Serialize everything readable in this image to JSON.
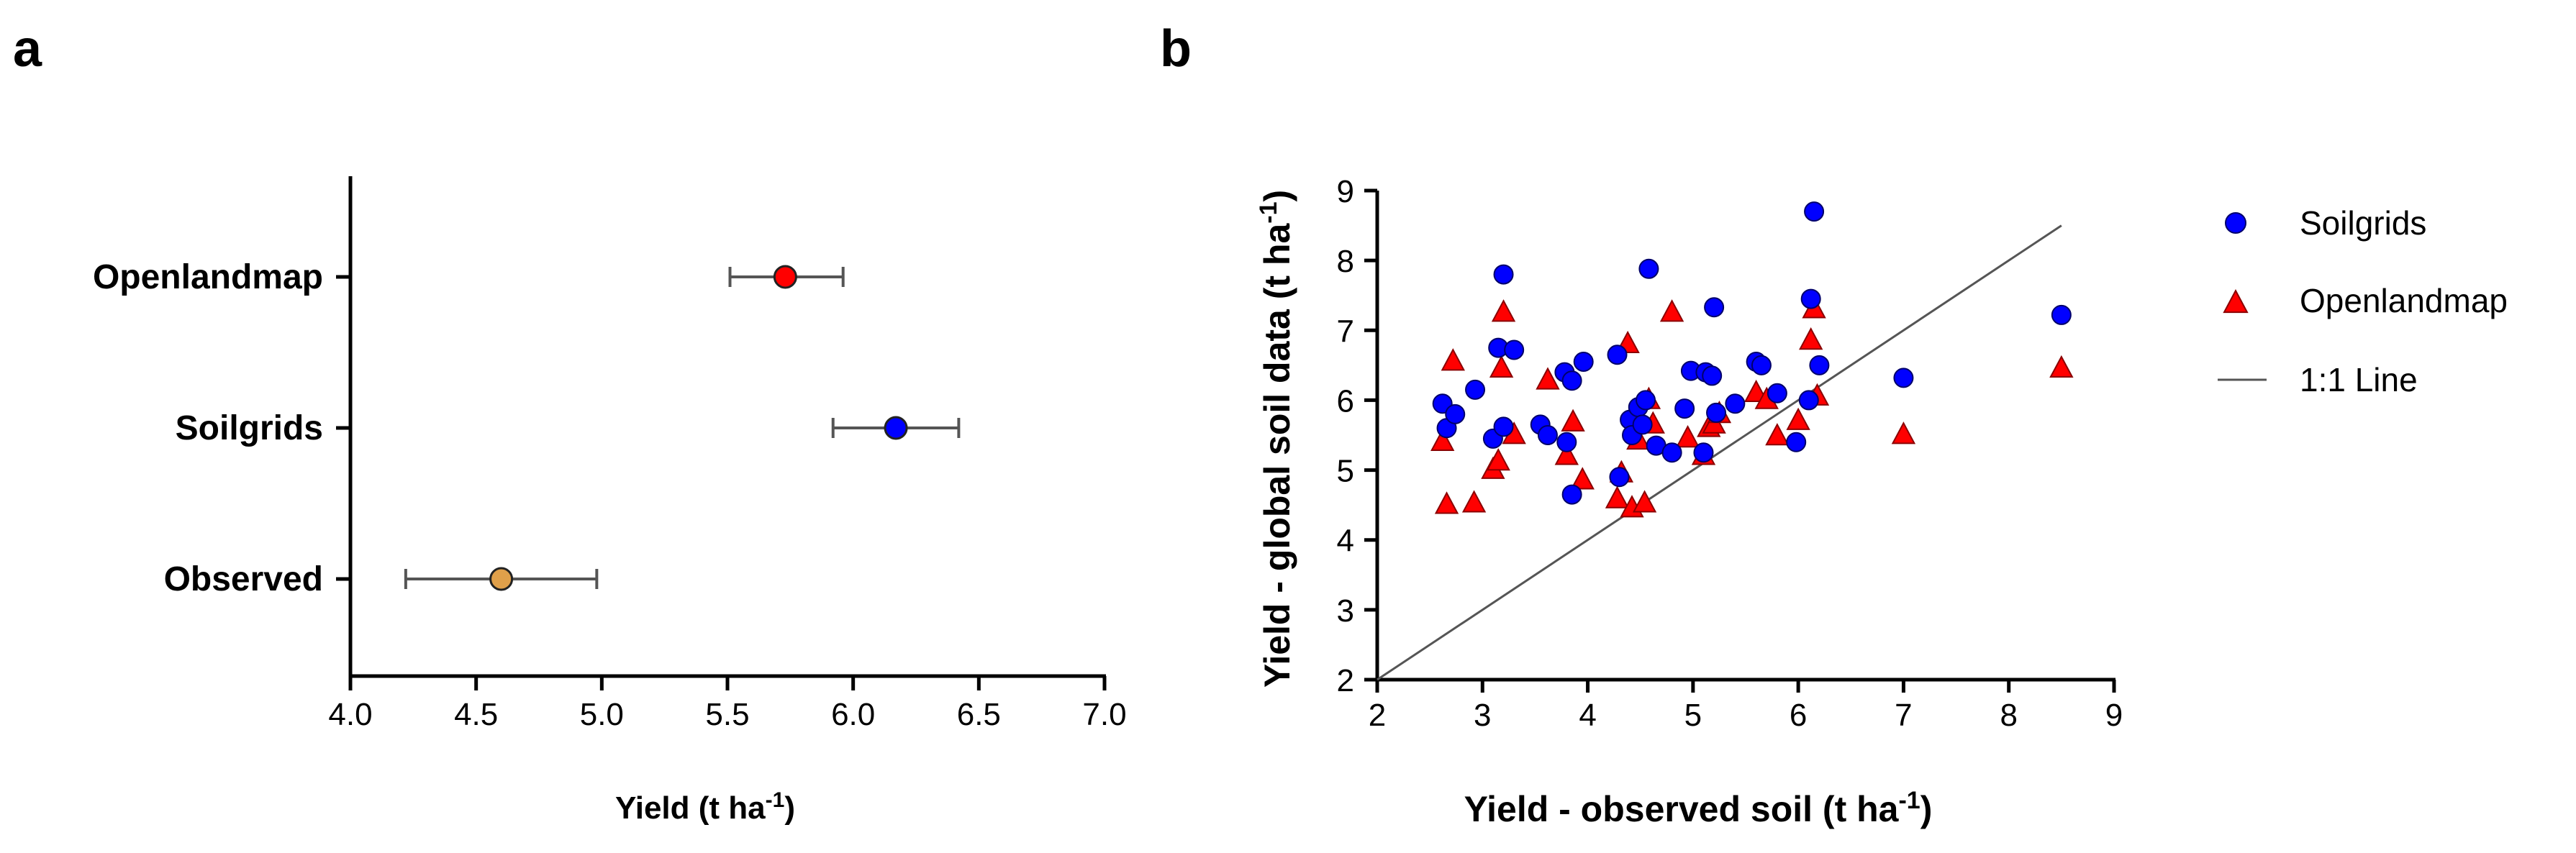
{
  "panel_a": {
    "letter": "a",
    "xlabel": {
      "main": "Yield (t ha",
      "sup": "-1",
      "end": ")"
    }
  },
  "panel_b": {
    "letter": "b",
    "xlabel": {
      "main": "Yield - observed soil (t ha",
      "sup": "-1",
      "end": ")"
    },
    "ylabel": {
      "main": "Yield - global soil data (t ha",
      "sup": "-1",
      "end": ")"
    }
  },
  "colors": {
    "openlandmap": "#ff0000",
    "soilgrids": "#0000ff",
    "observed": "#e0a04a",
    "line": "#555555",
    "axis": "#000000"
  },
  "chart_data": [
    {
      "type": "scatter",
      "subtype": "point-with-error-bars",
      "categories": [
        "Openlandmap",
        "Soilgrids",
        "Observed"
      ],
      "values": [
        5.73,
        6.17,
        4.6
      ],
      "error_low": [
        5.51,
        5.92,
        4.22
      ],
      "error_high": [
        5.96,
        6.42,
        4.98
      ],
      "xlim": [
        4.0,
        7.0
      ],
      "xticks": [
        "4.0",
        "4.5",
        "5.0",
        "5.5",
        "6.0",
        "6.5",
        "7.0"
      ],
      "xlabel": "Yield (t ha-1)",
      "grid": false
    },
    {
      "type": "scatter",
      "xlabel": "Yield - observed soil (t ha-1)",
      "ylabel": "Yield - global soil data (t ha-1)",
      "xlim": [
        2,
        9
      ],
      "ylim": [
        2,
        9
      ],
      "xticks": [
        "2",
        "3",
        "4",
        "5",
        "6",
        "7",
        "8",
        "9"
      ],
      "yticks": [
        "2",
        "3",
        "4",
        "5",
        "6",
        "7",
        "8",
        "9"
      ],
      "grid": false,
      "legend_position": "right",
      "series": [
        {
          "name": "Soilgrids",
          "marker": "circle",
          "points": [
            [
              2.62,
              5.95
            ],
            [
              2.66,
              5.6
            ],
            [
              2.74,
              5.8
            ],
            [
              2.93,
              6.15
            ],
            [
              3.1,
              5.45
            ],
            [
              3.15,
              6.75
            ],
            [
              3.2,
              5.62
            ],
            [
              3.2,
              7.8
            ],
            [
              3.3,
              6.72
            ],
            [
              3.55,
              5.65
            ],
            [
              3.62,
              5.5
            ],
            [
              3.78,
              6.4
            ],
            [
              3.8,
              5.4
            ],
            [
              3.85,
              6.28
            ],
            [
              3.85,
              4.65
            ],
            [
              3.96,
              6.55
            ],
            [
              4.28,
              6.65
            ],
            [
              4.3,
              4.9
            ],
            [
              4.4,
              5.72
            ],
            [
              4.42,
              5.5
            ],
            [
              4.48,
              5.9
            ],
            [
              4.52,
              5.65
            ],
            [
              4.55,
              6.0
            ],
            [
              4.58,
              7.88
            ],
            [
              4.65,
              5.35
            ],
            [
              4.8,
              5.25
            ],
            [
              4.92,
              5.88
            ],
            [
              4.98,
              6.42
            ],
            [
              5.1,
              5.25
            ],
            [
              5.12,
              6.4
            ],
            [
              5.18,
              6.35
            ],
            [
              5.2,
              7.33
            ],
            [
              5.22,
              5.82
            ],
            [
              5.4,
              5.95
            ],
            [
              5.6,
              6.55
            ],
            [
              5.65,
              6.5
            ],
            [
              5.8,
              6.1
            ],
            [
              5.98,
              5.4
            ],
            [
              6.1,
              6.0
            ],
            [
              6.12,
              7.45
            ],
            [
              6.15,
              8.7
            ],
            [
              6.2,
              6.5
            ],
            [
              7.0,
              6.32
            ],
            [
              8.5,
              7.22
            ]
          ]
        },
        {
          "name": "Openlandmap",
          "marker": "triangle",
          "points": [
            [
              2.62,
              5.4
            ],
            [
              2.66,
              4.5
            ],
            [
              2.72,
              6.55
            ],
            [
              2.92,
              4.52
            ],
            [
              3.1,
              5.0
            ],
            [
              3.15,
              5.12
            ],
            [
              3.18,
              6.45
            ],
            [
              3.2,
              7.25
            ],
            [
              3.3,
              5.5
            ],
            [
              3.62,
              6.28
            ],
            [
              3.8,
              5.2
            ],
            [
              3.86,
              5.68
            ],
            [
              3.95,
              4.85
            ],
            [
              4.28,
              4.58
            ],
            [
              4.32,
              4.95
            ],
            [
              4.38,
              6.8
            ],
            [
              4.42,
              4.45
            ],
            [
              4.48,
              5.42
            ],
            [
              4.54,
              4.52
            ],
            [
              4.58,
              6.0
            ],
            [
              4.62,
              5.65
            ],
            [
              4.8,
              7.25
            ],
            [
              4.95,
              5.45
            ],
            [
              5.1,
              5.2
            ],
            [
              5.15,
              5.6
            ],
            [
              5.2,
              5.65
            ],
            [
              5.25,
              5.8
            ],
            [
              5.6,
              6.1
            ],
            [
              5.7,
              6.0
            ],
            [
              5.8,
              5.48
            ],
            [
              6.0,
              5.7
            ],
            [
              6.12,
              6.85
            ],
            [
              6.15,
              7.3
            ],
            [
              6.18,
              6.05
            ],
            [
              7.0,
              5.5
            ],
            [
              8.5,
              6.45
            ]
          ]
        },
        {
          "name": "1:1 Line",
          "marker": "line",
          "points": [
            [
              2,
              2
            ],
            [
              8.5,
              8.5
            ]
          ]
        }
      ]
    }
  ]
}
